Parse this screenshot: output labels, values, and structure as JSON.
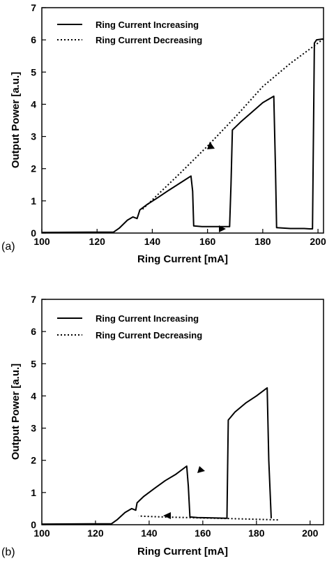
{
  "chart_data": [
    {
      "type": "line",
      "panel_label": "(a)",
      "xlabel": "Ring Current [mA]",
      "ylabel": "Output Power [a.u.]",
      "xlim": [
        100,
        202
      ],
      "ylim": [
        0,
        7
      ],
      "xticks": [
        "100",
        "120",
        "140",
        "160",
        "180",
        "200"
      ],
      "yticks": [
        "0",
        "1",
        "2",
        "3",
        "4",
        "5",
        "6",
        "7"
      ],
      "grid": false,
      "legend_placement": "top-left",
      "series": [
        {
          "name": "Ring Current Increasing",
          "style": "solid",
          "x": [
            100,
            126,
            128,
            131,
            133,
            134.5,
            135,
            135.5,
            138,
            142,
            146,
            150,
            154,
            154.6,
            155,
            158,
            164,
            168,
            168.5,
            169,
            172,
            176,
            180,
            183,
            184,
            184.6,
            185,
            190,
            195,
            197,
            198,
            198.7,
            199.5,
            202
          ],
          "y": [
            0.02,
            0.03,
            0.15,
            0.4,
            0.5,
            0.45,
            0.58,
            0.72,
            0.88,
            1.1,
            1.33,
            1.55,
            1.77,
            1.3,
            0.22,
            0.2,
            0.2,
            0.2,
            1.5,
            3.2,
            3.45,
            3.75,
            4.05,
            4.2,
            4.25,
            2.0,
            0.17,
            0.14,
            0.14,
            0.13,
            0.13,
            5.9,
            6.0,
            6.03
          ]
        },
        {
          "name": "Ring Current Decreasing",
          "style": "dotted",
          "x": [
            202,
            190,
            180,
            170,
            160,
            150,
            140,
            136
          ],
          "y": [
            6.03,
            5.27,
            4.55,
            3.6,
            2.7,
            1.85,
            1.03,
            0.7
          ]
        }
      ]
    },
    {
      "type": "line",
      "panel_label": "(b)",
      "xlabel": "Ring Current [mA]",
      "ylabel": "Output Power [a.u.]",
      "xlim": [
        100,
        205
      ],
      "ylim": [
        0,
        7
      ],
      "xticks": [
        "100",
        "120",
        "140",
        "160",
        "180",
        "200"
      ],
      "yticks": [
        "0",
        "1",
        "2",
        "3",
        "4",
        "5",
        "6",
        "7"
      ],
      "grid": false,
      "legend_placement": "top-left",
      "series": [
        {
          "name": "Ring Current Increasing",
          "style": "solid",
          "x": [
            100,
            126,
            128,
            131,
            133.5,
            135,
            135.5,
            138,
            142,
            146,
            150,
            154,
            154.6,
            155.2,
            158,
            164,
            169,
            169.5,
            172,
            176,
            180,
            184,
            184.6,
            185.5
          ],
          "y": [
            0.02,
            0.03,
            0.15,
            0.38,
            0.5,
            0.45,
            0.68,
            0.88,
            1.13,
            1.37,
            1.57,
            1.82,
            1.2,
            0.24,
            0.22,
            0.21,
            0.2,
            3.25,
            3.5,
            3.78,
            4.0,
            4.25,
            2.0,
            0.2
          ]
        },
        {
          "name": "Ring Current Decreasing",
          "style": "dotted",
          "x": [
            188,
            180,
            170,
            160,
            150,
            142,
            136
          ],
          "y": [
            0.15,
            0.17,
            0.19,
            0.21,
            0.23,
            0.25,
            0.27
          ]
        }
      ]
    }
  ]
}
